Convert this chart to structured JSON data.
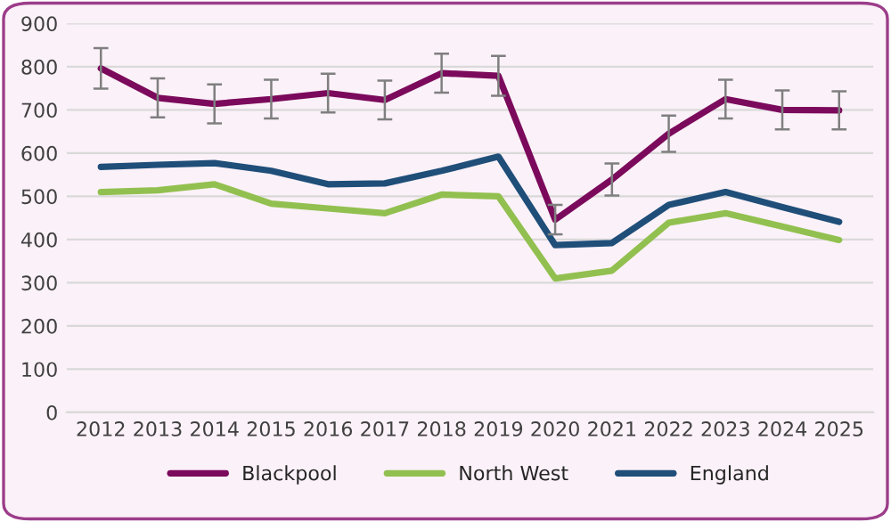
{
  "chart_data": {
    "type": "line",
    "categories": [
      "2012",
      "2013",
      "2014",
      "2015",
      "2016",
      "2017",
      "2018",
      "2019",
      "2020",
      "2021",
      "2022",
      "2023",
      "2024",
      "2025"
    ],
    "series": [
      {
        "name": "Blackpool",
        "color": "#7b0a5c",
        "values": [
          796,
          728,
          714,
          725,
          739,
          723,
          785,
          779,
          446,
          539,
          645,
          725,
          700,
          699
        ],
        "errors": [
          47,
          45,
          45,
          45,
          45,
          45,
          45,
          46,
          34,
          37,
          42,
          45,
          45,
          44
        ]
      },
      {
        "name": "North West",
        "color": "#92c050",
        "values": [
          510,
          514,
          528,
          483,
          472,
          461,
          504,
          500,
          310,
          328,
          439,
          461,
          430,
          399
        ]
      },
      {
        "name": "England",
        "color": "#1f4e79",
        "values": [
          568,
          573,
          577,
          559,
          528,
          530,
          559,
          592,
          387,
          392,
          480,
          510,
          475,
          441
        ]
      }
    ],
    "ylim": [
      0,
      900
    ],
    "yticks": [
      0,
      100,
      200,
      300,
      400,
      500,
      600,
      700,
      800,
      900
    ],
    "grid": "y",
    "legend": "bottom",
    "marker": "none",
    "line_style": "solid"
  }
}
